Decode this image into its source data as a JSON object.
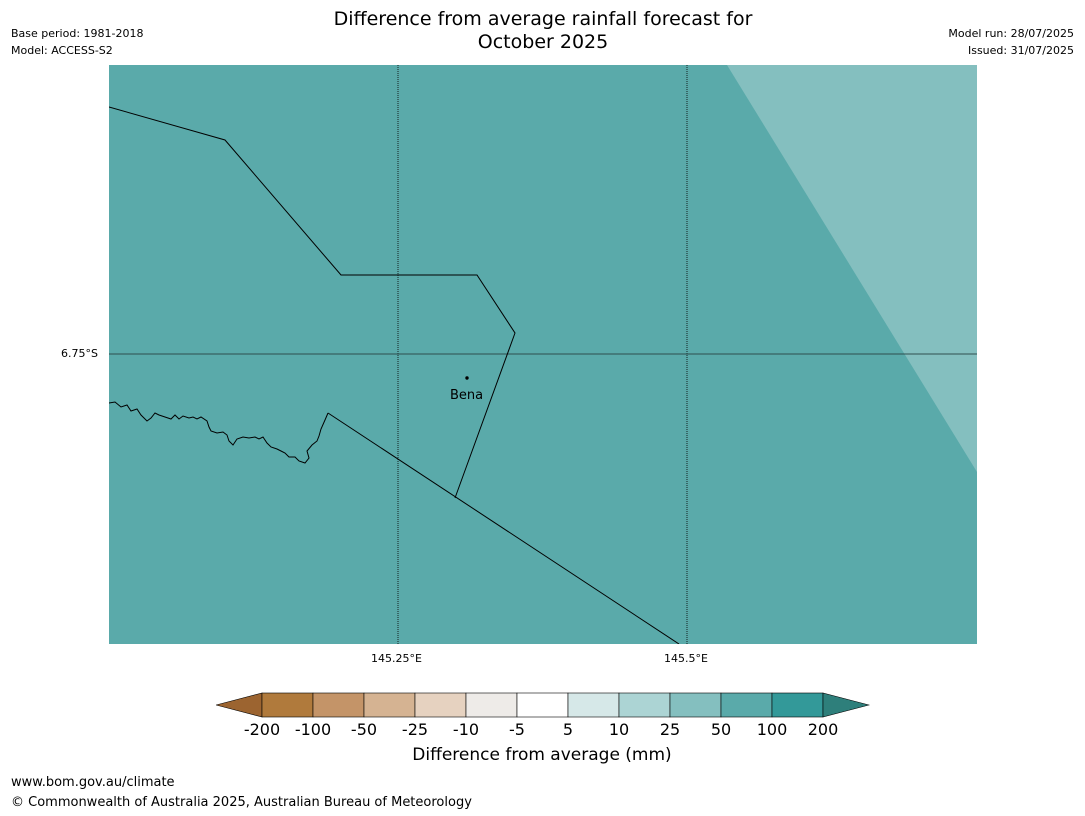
{
  "header": {
    "title_line1": "Difference from average rainfall forecast for",
    "title_line2": "October 2025",
    "base_period": "Base period: 1981-2018",
    "model": "Model: ACCESS-S2",
    "model_run": "Model run: 28/07/2025",
    "issued": "Issued: 31/07/2025"
  },
  "map": {
    "lat_labels": [
      "6.75°S"
    ],
    "lon_labels": [
      "145.25°E",
      "145.5°E"
    ],
    "places": [
      {
        "name": "Bena"
      }
    ],
    "fill_colors": {
      "main": "#5aaaaa",
      "lighter": "#84bfbf"
    }
  },
  "colorbar": {
    "label": "Difference from average (mm)",
    "ticks": [
      "-200",
      "-100",
      "-50",
      "-25",
      "-10",
      "-5",
      "5",
      "10",
      "25",
      "50",
      "100",
      "200"
    ],
    "colors": [
      "#9c6430",
      "#b07a3c",
      "#c49468",
      "#d5b392",
      "#e6d2c0",
      "#eeebe8",
      "#ffffff",
      "#d6e8e8",
      "#acd4d4",
      "#84bfbf",
      "#5aaaaa",
      "#339999",
      "#2e7f7b"
    ]
  },
  "footer": {
    "url": "www.bom.gov.au/climate",
    "copyright": "© Commonwealth of Australia 2025, Australian Bureau of Meteorology"
  }
}
